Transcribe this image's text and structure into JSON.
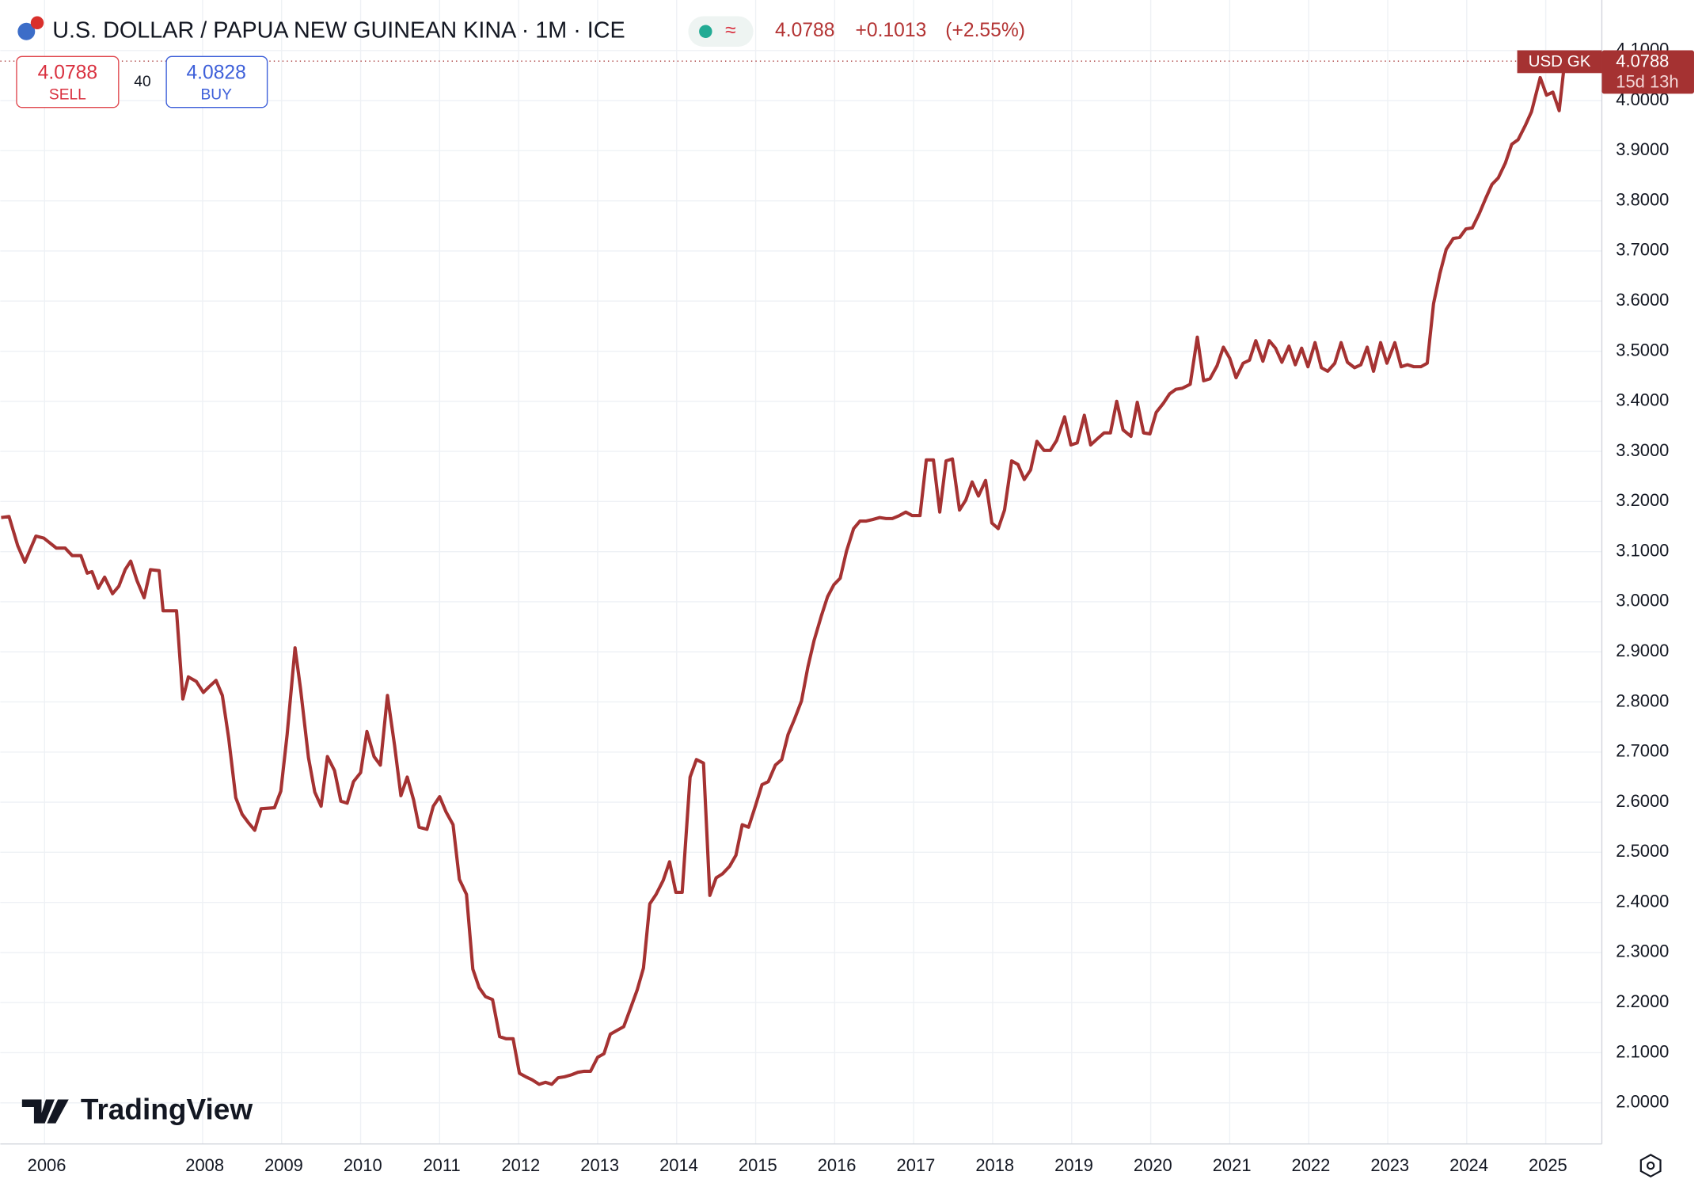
{
  "chart_data": {
    "type": "line",
    "title": "U.S. DOLLAR / PAPUA NEW GUINEAN KINA · 1M · ICE",
    "price": "4.0788",
    "change": "+0.1013",
    "change_pct": "(+2.55%)",
    "sell_price": "4.0788",
    "sell_label": "SELL",
    "spread": "40",
    "buy_price": "4.0828",
    "buy_label": "BUY",
    "tag_symbol": "USD GK",
    "tag_price": "4.0788",
    "tag_time": "15d 13h",
    "logo": "TradingView",
    "grid": true,
    "xlim": [
      2005.44,
      2025.71
    ],
    "ylim": [
      1.918,
      4.19
    ],
    "xticks": [
      2006,
      2008,
      2009,
      2010,
      2011,
      2012,
      2013,
      2014,
      2015,
      2016,
      2017,
      2018,
      2019,
      2020,
      2021,
      2022,
      2023,
      2024,
      2025
    ],
    "yticks": [
      {
        "value": 2,
        "label": "2.0000"
      },
      {
        "value": 2.1,
        "label": "2.1000"
      },
      {
        "value": 2.2,
        "label": "2.2000"
      },
      {
        "value": 2.3,
        "label": "2.3000"
      },
      {
        "value": 2.4,
        "label": "2.4000"
      },
      {
        "value": 2.5,
        "label": "2.5000"
      },
      {
        "value": 2.6,
        "label": "2.6000"
      },
      {
        "value": 2.7,
        "label": "2.7000"
      },
      {
        "value": 2.8,
        "label": "2.8000"
      },
      {
        "value": 2.9,
        "label": "2.9000"
      },
      {
        "value": 3,
        "label": "3.0000"
      },
      {
        "value": 3.1,
        "label": "3.1000"
      },
      {
        "value": 3.2,
        "label": "3.2000"
      },
      {
        "value": 3.3,
        "label": "3.3000"
      },
      {
        "value": 3.4,
        "label": "3.4000"
      },
      {
        "value": 3.5,
        "label": "3.5000"
      },
      {
        "value": 3.6,
        "label": "3.6000"
      },
      {
        "value": 3.7,
        "label": "3.7000"
      },
      {
        "value": 3.8,
        "label": "3.8000"
      },
      {
        "value": 3.9,
        "label": "3.9000"
      },
      {
        "value": 4,
        "label": "4.0000"
      },
      {
        "value": 4.1,
        "label": "4.1000"
      }
    ],
    "x": [
      2005.45,
      2005.55,
      2005.66,
      2005.75,
      2005.89,
      2005.99,
      2006.15,
      2006.26,
      2006.35,
      2006.46,
      2006.54,
      2006.6,
      2006.68,
      2006.76,
      2006.86,
      2006.94,
      2007.02,
      2007.09,
      2007.17,
      2007.26,
      2007.34,
      2007.45,
      2007.5,
      2007.67,
      2007.75,
      2007.82,
      2007.92,
      2008.01,
      2008.08,
      2008.17,
      2008.25,
      2008.33,
      2008.42,
      2008.5,
      2008.58,
      2008.66,
      2008.74,
      2008.91,
      2008.99,
      2009.07,
      2009.17,
      2009.24,
      2009.34,
      2009.42,
      2009.5,
      2009.58,
      2009.67,
      2009.75,
      2009.83,
      2009.91,
      2010,
      2010.08,
      2010.17,
      2010.25,
      2010.34,
      2010.43,
      2010.51,
      2010.59,
      2010.67,
      2010.74,
      2010.84,
      2010.92,
      2011,
      2011.08,
      2011.17,
      2011.25,
      2011.34,
      2011.42,
      2011.5,
      2011.58,
      2011.67,
      2011.76,
      2011.84,
      2011.93,
      2012.01,
      2012.09,
      2012.17,
      2012.26,
      2012.34,
      2012.42,
      2012.5,
      2012.58,
      2012.67,
      2012.75,
      2012.83,
      2012.91,
      2013,
      2013.08,
      2013.16,
      2013.25,
      2013.33,
      2013.41,
      2013.5,
      2013.58,
      2013.66,
      2013.74,
      2013.83,
      2013.91,
      2013.99,
      2014.07,
      2014.17,
      2014.25,
      2014.34,
      2014.42,
      2014.5,
      2014.58,
      2014.67,
      2014.75,
      2014.83,
      2014.91,
      2015,
      2015.08,
      2015.16,
      2015.25,
      2015.33,
      2015.41,
      2015.49,
      2015.58,
      2015.66,
      2015.74,
      2015.83,
      2015.91,
      2015.99,
      2016.07,
      2016.15,
      2016.24,
      2016.32,
      2016.4,
      2016.48,
      2016.57,
      2016.65,
      2016.73,
      2016.82,
      2016.9,
      2016.98,
      2017.08,
      2017.16,
      2017.25,
      2017.33,
      2017.41,
      2017.49,
      2017.58,
      2017.66,
      2017.74,
      2017.82,
      2017.91,
      2017.99,
      2018.07,
      2018.15,
      2018.24,
      2018.32,
      2018.4,
      2018.48,
      2018.56,
      2018.65,
      2018.73,
      2018.81,
      2018.91,
      2018.99,
      2019.07,
      2019.16,
      2019.24,
      2019.33,
      2019.41,
      2019.49,
      2019.57,
      2019.65,
      2019.75,
      2019.83,
      2019.91,
      2019.99,
      2020.07,
      2020.16,
      2020.24,
      2020.32,
      2020.4,
      2020.5,
      2020.59,
      2020.67,
      2020.75,
      2020.84,
      2020.92,
      2021,
      2021.08,
      2021.17,
      2021.25,
      2021.33,
      2021.42,
      2021.5,
      2021.58,
      2021.66,
      2021.75,
      2021.83,
      2021.91,
      2021.99,
      2022.08,
      2022.16,
      2022.24,
      2022.33,
      2022.41,
      2022.49,
      2022.58,
      2022.66,
      2022.74,
      2022.82,
      2022.91,
      2022.99,
      2023.09,
      2023.17,
      2023.25,
      2023.33,
      2023.42,
      2023.5,
      2023.58,
      2023.66,
      2023.74,
      2023.83,
      2023.91,
      2023.99,
      2024.07,
      2024.16,
      2024.24,
      2024.32,
      2024.4,
      2024.49,
      2024.57,
      2024.65,
      2024.74,
      2024.82,
      2024.93,
      2025.01,
      2025.09,
      2025.17,
      2025.24
    ],
    "series": [
      {
        "name": "USD GK",
        "color": "#a53232",
        "values": [
          3.168,
          3.17,
          3.112,
          3.079,
          3.131,
          3.127,
          3.107,
          3.107,
          3.092,
          3.092,
          3.057,
          3.06,
          3.027,
          3.049,
          3.016,
          3.031,
          3.064,
          3.081,
          3.042,
          3.008,
          3.064,
          3.062,
          2.982,
          2.982,
          2.806,
          2.85,
          2.841,
          2.819,
          2.83,
          2.843,
          2.813,
          2.728,
          2.609,
          2.576,
          2.559,
          2.544,
          2.587,
          2.589,
          2.622,
          2.735,
          2.908,
          2.826,
          2.689,
          2.62,
          2.592,
          2.691,
          2.663,
          2.602,
          2.598,
          2.641,
          2.659,
          2.741,
          2.691,
          2.674,
          2.813,
          2.713,
          2.613,
          2.65,
          2.605,
          2.55,
          2.546,
          2.592,
          2.611,
          2.581,
          2.555,
          2.446,
          2.416,
          2.267,
          2.23,
          2.212,
          2.206,
          2.132,
          2.128,
          2.128,
          2.059,
          2.052,
          2.046,
          2.037,
          2.041,
          2.037,
          2.05,
          2.052,
          2.056,
          2.061,
          2.063,
          2.063,
          2.091,
          2.098,
          2.137,
          2.145,
          2.152,
          2.186,
          2.225,
          2.269,
          2.397,
          2.416,
          2.444,
          2.481,
          2.42,
          2.42,
          2.65,
          2.685,
          2.678,
          2.414,
          2.449,
          2.457,
          2.472,
          2.494,
          2.555,
          2.55,
          2.594,
          2.635,
          2.641,
          2.674,
          2.685,
          2.735,
          2.765,
          2.802,
          2.869,
          2.923,
          2.971,
          3.01,
          3.034,
          3.047,
          3.101,
          3.146,
          3.161,
          3.161,
          3.164,
          3.168,
          3.166,
          3.166,
          3.172,
          3.179,
          3.172,
          3.172,
          3.283,
          3.283,
          3.179,
          3.281,
          3.285,
          3.183,
          3.203,
          3.239,
          3.211,
          3.242,
          3.157,
          3.146,
          3.183,
          3.281,
          3.274,
          3.244,
          3.263,
          3.32,
          3.302,
          3.302,
          3.322,
          3.369,
          3.313,
          3.317,
          3.372,
          3.313,
          3.326,
          3.337,
          3.337,
          3.4,
          3.343,
          3.33,
          3.398,
          3.337,
          3.335,
          3.378,
          3.396,
          3.415,
          3.424,
          3.426,
          3.434,
          3.528,
          3.441,
          3.445,
          3.471,
          3.508,
          3.486,
          3.447,
          3.476,
          3.482,
          3.521,
          3.48,
          3.521,
          3.506,
          3.478,
          3.51,
          3.473,
          3.506,
          3.469,
          3.517,
          3.467,
          3.46,
          3.476,
          3.517,
          3.478,
          3.467,
          3.473,
          3.508,
          3.46,
          3.517,
          3.476,
          3.517,
          3.469,
          3.473,
          3.469,
          3.469,
          3.476,
          3.595,
          3.655,
          3.703,
          3.725,
          3.727,
          3.744,
          3.746,
          3.775,
          3.805,
          3.833,
          3.846,
          3.876,
          3.913,
          3.922,
          3.95,
          3.978,
          4.046,
          4.011,
          4.017,
          3.98,
          4.0788
        ]
      }
    ]
  }
}
